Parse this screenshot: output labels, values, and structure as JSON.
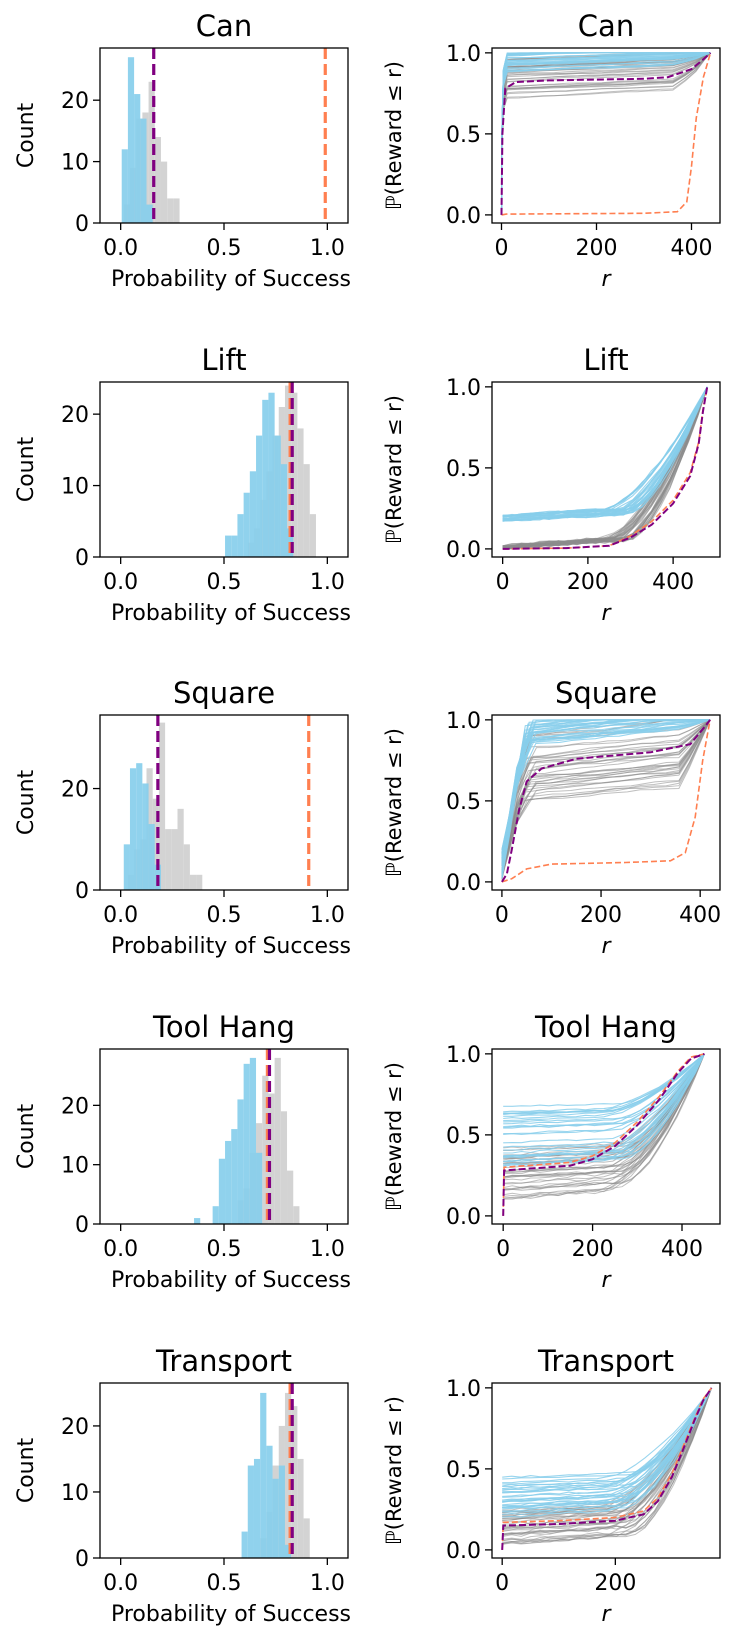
{
  "chart_data": [
    {
      "type": "bar",
      "title": "Can",
      "xlabel": "Probability of Success",
      "ylabel": "Count",
      "xlim": [
        -0.1,
        1.1
      ],
      "ylim": [
        0,
        28.5
      ],
      "xticks": [
        "0.0",
        "0.5",
        "1.0"
      ],
      "yticks": [
        "0",
        "10",
        "20"
      ],
      "series": [
        {
          "name": "gray",
          "color": "#d3d3d3",
          "x": [
            0.03,
            0.06,
            0.09,
            0.12,
            0.15,
            0.18,
            0.21,
            0.24,
            0.27
          ],
          "values": [
            3,
            9,
            17,
            18,
            23,
            14,
            10,
            4,
            4
          ]
        },
        {
          "name": "blue",
          "color": "#87ceeb",
          "x": [
            0.02,
            0.05,
            0.08,
            0.11,
            0.14
          ],
          "values": [
            12,
            27,
            21,
            17,
            3
          ]
        }
      ],
      "vlines": [
        {
          "name": "purple-mean",
          "color": "#800080",
          "x": 0.16
        },
        {
          "name": "orange-mean",
          "color": "#ff7f50",
          "x": 0.99
        }
      ]
    },
    {
      "type": "line",
      "title": "Can",
      "xlabel": "r",
      "ylabel": "ℙ(Reward ≤ r)",
      "xlim": [
        -20,
        460
      ],
      "ylim": [
        -0.05,
        1.03
      ],
      "xticks": [
        "0",
        "200",
        "400"
      ],
      "yticks": [
        "0.0",
        "0.5",
        "1.0"
      ],
      "family": "plateau",
      "x_end": 440,
      "gray": {
        "count": 38,
        "min": 0.72,
        "max": 0.96,
        "x_start": 0
      },
      "blue": {
        "count": 30,
        "min": 0.88,
        "max": 1.0,
        "x_start": 0
      },
      "purple": [
        [
          0,
          0
        ],
        [
          2,
          0.5
        ],
        [
          8,
          0.78
        ],
        [
          30,
          0.82
        ],
        [
          100,
          0.83
        ],
        [
          300,
          0.84
        ],
        [
          350,
          0.85
        ],
        [
          400,
          0.9
        ],
        [
          425,
          0.96
        ],
        [
          440,
          1.0
        ]
      ],
      "orange": [
        [
          0,
          0
        ],
        [
          10,
          0.005
        ],
        [
          300,
          0.01
        ],
        [
          370,
          0.02
        ],
        [
          390,
          0.08
        ],
        [
          400,
          0.3
        ],
        [
          410,
          0.6
        ],
        [
          425,
          0.85
        ],
        [
          440,
          1.0
        ]
      ]
    },
    {
      "type": "bar",
      "title": "Lift",
      "xlabel": "Probability of Success",
      "ylabel": "Count",
      "xlim": [
        -0.1,
        1.1
      ],
      "ylim": [
        0,
        24.5
      ],
      "xticks": [
        "0.0",
        "0.5",
        "1.0"
      ],
      "yticks": [
        "0",
        "10",
        "20"
      ],
      "series": [
        {
          "name": "gray",
          "color": "#d3d3d3",
          "x": [
            0.63,
            0.66,
            0.69,
            0.72,
            0.75,
            0.78,
            0.81,
            0.84,
            0.87,
            0.9,
            0.93
          ],
          "values": [
            2,
            4,
            8,
            12,
            17,
            21,
            24,
            23,
            18,
            13,
            6
          ]
        },
        {
          "name": "blue",
          "color": "#87ceeb",
          "x": [
            0.52,
            0.55,
            0.58,
            0.61,
            0.64,
            0.67,
            0.7,
            0.73,
            0.76,
            0.79,
            0.82
          ],
          "values": [
            3,
            3,
            6,
            9,
            12,
            17,
            22,
            23,
            17,
            13,
            4
          ]
        }
      ],
      "vlines": [
        {
          "name": "orange-mean",
          "color": "#ff7f50",
          "x": 0.82
        },
        {
          "name": "purple-mean",
          "color": "#800080",
          "x": 0.83
        }
      ]
    },
    {
      "type": "line",
      "title": "Lift",
      "xlabel": "r",
      "ylabel": "ℙ(Reward ≤ r)",
      "xlim": [
        -25,
        510
      ],
      "ylim": [
        -0.05,
        1.03
      ],
      "xticks": [
        "0",
        "200",
        "400"
      ],
      "yticks": [
        "0.0",
        "0.5",
        "1.0"
      ],
      "family": "ramp",
      "x_end": 480,
      "gray": {
        "count": 38,
        "plateau": [
          0.0,
          0.02
        ],
        "x_start": 0
      },
      "blue": {
        "count": 30,
        "plateau": [
          0.17,
          0.21
        ],
        "x_start": 0
      },
      "purple": [
        [
          0,
          0
        ],
        [
          150,
          0.005
        ],
        [
          250,
          0.02
        ],
        [
          300,
          0.07
        ],
        [
          350,
          0.15
        ],
        [
          400,
          0.28
        ],
        [
          440,
          0.45
        ],
        [
          460,
          0.65
        ],
        [
          470,
          0.85
        ],
        [
          480,
          1.0
        ]
      ],
      "orange": [
        [
          0,
          0
        ],
        [
          150,
          0.005
        ],
        [
          250,
          0.02
        ],
        [
          300,
          0.08
        ],
        [
          350,
          0.17
        ],
        [
          400,
          0.3
        ],
        [
          440,
          0.47
        ],
        [
          460,
          0.66
        ],
        [
          470,
          0.86
        ],
        [
          480,
          1.0
        ]
      ]
    },
    {
      "type": "bar",
      "title": "Square",
      "xlabel": "Probability of Success",
      "ylabel": "Count",
      "xlim": [
        -0.1,
        1.1
      ],
      "ylim": [
        0,
        34.5
      ],
      "xticks": [
        "0.0",
        "0.5",
        "1.0"
      ],
      "yticks": [
        "0",
        "20"
      ],
      "series": [
        {
          "name": "gray",
          "color": "#d3d3d3",
          "x": [
            0.05,
            0.08,
            0.11,
            0.14,
            0.17,
            0.2,
            0.23,
            0.26,
            0.29,
            0.32,
            0.35,
            0.38
          ],
          "values": [
            3,
            8,
            10,
            24,
            18,
            33,
            12,
            12,
            16,
            9,
            3,
            3
          ]
        },
        {
          "name": "blue",
          "color": "#87ceeb",
          "x": [
            0.03,
            0.06,
            0.09,
            0.12,
            0.15,
            0.18
          ],
          "values": [
            9,
            24,
            25,
            21,
            13,
            5
          ]
        }
      ],
      "vlines": [
        {
          "name": "purple-mean",
          "color": "#800080",
          "x": 0.18
        },
        {
          "name": "orange-mean",
          "color": "#ff7f50",
          "x": 0.91
        }
      ]
    },
    {
      "type": "line",
      "title": "Square",
      "xlabel": "r",
      "ylabel": "ℙ(Reward ≤ r)",
      "xlim": [
        -20,
        440
      ],
      "ylim": [
        -0.05,
        1.03
      ],
      "xticks": [
        "0",
        "200",
        "400"
      ],
      "yticks": [
        "0.0",
        "0.5",
        "1.0"
      ],
      "family": "steep",
      "x_end": 420,
      "gray": {
        "count": 38,
        "min": 0.5,
        "max": 0.92,
        "x_start": 0
      },
      "blue": {
        "count": 30,
        "min": 0.85,
        "max": 1.0,
        "x_start": 0
      },
      "purple": [
        [
          0,
          0
        ],
        [
          10,
          0.05
        ],
        [
          20,
          0.2
        ],
        [
          35,
          0.45
        ],
        [
          50,
          0.62
        ],
        [
          80,
          0.7
        ],
        [
          150,
          0.76
        ],
        [
          300,
          0.8
        ],
        [
          380,
          0.85
        ],
        [
          410,
          0.96
        ],
        [
          420,
          1.0
        ]
      ],
      "orange": [
        [
          0,
          0
        ],
        [
          20,
          0.02
        ],
        [
          50,
          0.08
        ],
        [
          100,
          0.11
        ],
        [
          250,
          0.12
        ],
        [
          340,
          0.13
        ],
        [
          370,
          0.18
        ],
        [
          390,
          0.4
        ],
        [
          405,
          0.75
        ],
        [
          420,
          1.0
        ]
      ]
    },
    {
      "type": "bar",
      "title": "Tool Hang",
      "xlabel": "Probability of Success",
      "ylabel": "Count",
      "xlim": [
        -0.1,
        1.1
      ],
      "ylim": [
        0,
        29.5
      ],
      "xticks": [
        "0.0",
        "0.5",
        "1.0"
      ],
      "yticks": [
        "0",
        "10",
        "20"
      ],
      "series": [
        {
          "name": "gray",
          "color": "#d3d3d3",
          "x": [
            0.58,
            0.61,
            0.64,
            0.67,
            0.7,
            0.73,
            0.76,
            0.79,
            0.82,
            0.85
          ],
          "values": [
            4,
            6,
            12,
            17,
            25,
            22,
            28,
            19,
            9,
            3
          ]
        },
        {
          "name": "blue",
          "color": "#87ceeb",
          "x": [
            0.37,
            0.46,
            0.49,
            0.52,
            0.55,
            0.58,
            0.61,
            0.64,
            0.67
          ],
          "values": [
            1,
            3,
            11,
            14,
            16,
            21,
            27,
            28,
            12
          ]
        }
      ],
      "vlines": [
        {
          "name": "orange-mean",
          "color": "#ff7f50",
          "x": 0.71
        },
        {
          "name": "purple-mean",
          "color": "#800080",
          "x": 0.72
        }
      ]
    },
    {
      "type": "line",
      "title": "Tool Hang",
      "xlabel": "r",
      "ylabel": "ℙ(Reward ≤ r)",
      "xlim": [
        -25,
        485
      ],
      "ylim": [
        -0.05,
        1.03
      ],
      "xticks": [
        "0",
        "200",
        "400"
      ],
      "yticks": [
        "0.0",
        "0.5",
        "1.0"
      ],
      "family": "ramp",
      "x_end": 450,
      "gray": {
        "count": 38,
        "plateau": [
          0.1,
          0.42
        ],
        "x_start": 0
      },
      "blue": {
        "count": 30,
        "plateau": [
          0.3,
          0.7
        ],
        "x_start": 0
      },
      "purple": [
        [
          0,
          0
        ],
        [
          2,
          0.28
        ],
        [
          50,
          0.29
        ],
        [
          150,
          0.31
        ],
        [
          200,
          0.35
        ],
        [
          250,
          0.43
        ],
        [
          300,
          0.56
        ],
        [
          350,
          0.72
        ],
        [
          390,
          0.88
        ],
        [
          420,
          0.97
        ],
        [
          450,
          1.0
        ]
      ],
      "orange": [
        [
          0,
          0
        ],
        [
          2,
          0.3
        ],
        [
          50,
          0.31
        ],
        [
          150,
          0.33
        ],
        [
          200,
          0.37
        ],
        [
          250,
          0.45
        ],
        [
          300,
          0.58
        ],
        [
          350,
          0.74
        ],
        [
          390,
          0.89
        ],
        [
          420,
          0.98
        ],
        [
          450,
          1.0
        ]
      ]
    },
    {
      "type": "bar",
      "title": "Transport",
      "xlabel": "Probability of Success",
      "ylabel": "Count",
      "xlim": [
        -0.1,
        1.1
      ],
      "ylim": [
        0,
        26.5
      ],
      "xticks": [
        "0.0",
        "0.5",
        "1.0"
      ],
      "yticks": [
        "0",
        "10",
        "20"
      ],
      "series": [
        {
          "name": "gray",
          "color": "#d3d3d3",
          "x": [
            0.69,
            0.72,
            0.75,
            0.78,
            0.81,
            0.84,
            0.87,
            0.9
          ],
          "values": [
            3,
            7,
            14,
            20,
            25,
            23,
            15,
            6
          ]
        },
        {
          "name": "blue",
          "color": "#87ceeb",
          "x": [
            0.6,
            0.63,
            0.66,
            0.69,
            0.72,
            0.75,
            0.78,
            0.81
          ],
          "values": [
            4,
            14,
            15,
            25,
            17,
            12,
            14,
            2
          ]
        }
      ],
      "vlines": [
        {
          "name": "orange-mean",
          "color": "#ff7f50",
          "x": 0.82
        },
        {
          "name": "purple-mean",
          "color": "#800080",
          "x": 0.83
        }
      ]
    },
    {
      "type": "line",
      "title": "Transport",
      "xlabel": "r",
      "ylabel": "ℙ(Reward ≤ r)",
      "xlim": [
        -18,
        385
      ],
      "ylim": [
        -0.05,
        1.03
      ],
      "xticks": [
        "0",
        "200"
      ],
      "yticks": [
        "0.0",
        "0.5",
        "1.0"
      ],
      "family": "ramp",
      "x_end": 370,
      "gray": {
        "count": 38,
        "plateau": [
          0.02,
          0.25
        ],
        "x_start": 0
      },
      "blue": {
        "count": 30,
        "plateau": [
          0.2,
          0.46
        ],
        "x_start": 0
      },
      "purple": [
        [
          0,
          0
        ],
        [
          2,
          0.15
        ],
        [
          100,
          0.16
        ],
        [
          200,
          0.18
        ],
        [
          250,
          0.22
        ],
        [
          275,
          0.3
        ],
        [
          300,
          0.45
        ],
        [
          320,
          0.62
        ],
        [
          340,
          0.8
        ],
        [
          355,
          0.92
        ],
        [
          370,
          1.0
        ]
      ],
      "orange": [
        [
          0,
          0
        ],
        [
          2,
          0.17
        ],
        [
          100,
          0.18
        ],
        [
          200,
          0.2
        ],
        [
          250,
          0.24
        ],
        [
          275,
          0.32
        ],
        [
          300,
          0.47
        ],
        [
          320,
          0.64
        ],
        [
          340,
          0.81
        ],
        [
          355,
          0.93
        ],
        [
          370,
          1.0
        ]
      ]
    }
  ]
}
